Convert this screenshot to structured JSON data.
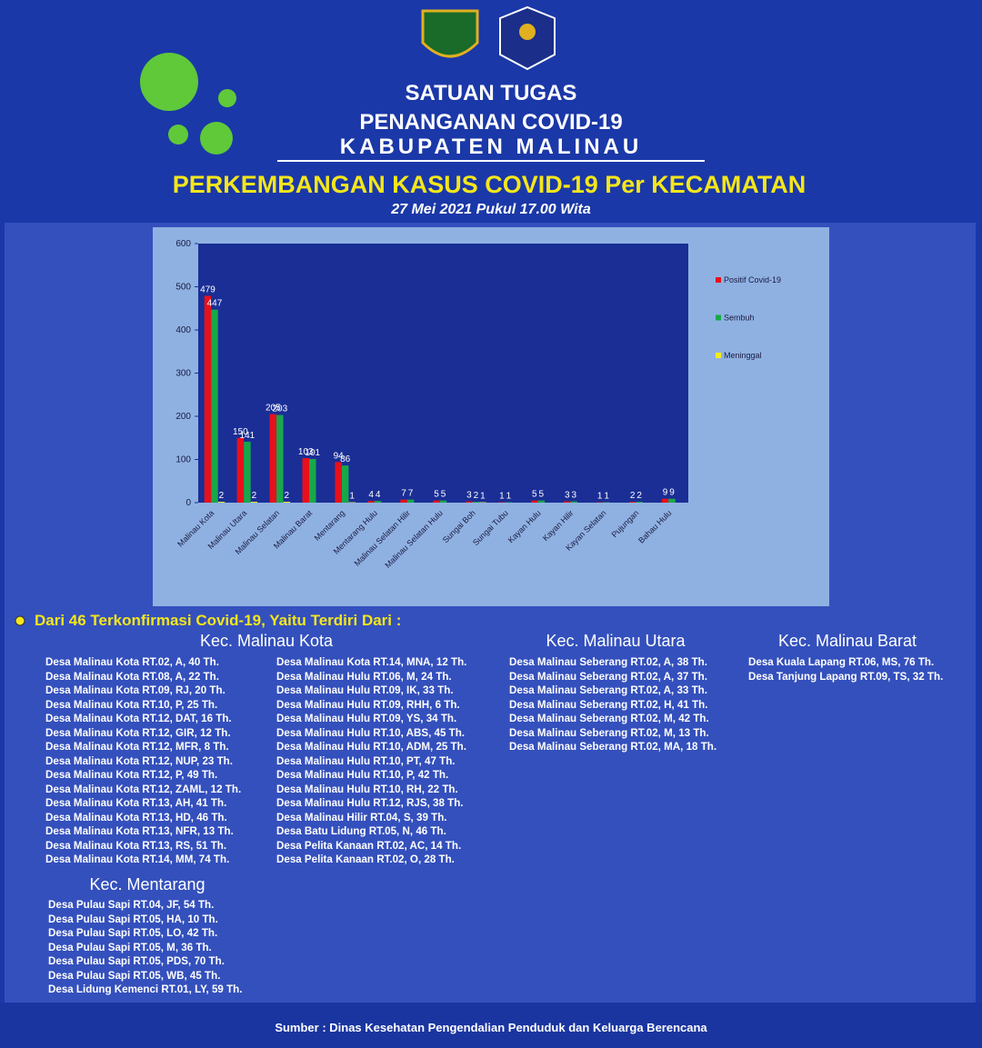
{
  "header": {
    "title_lines": [
      "SATUAN TUGAS",
      "PENANGANAN COVID-19",
      "KABUPATEN MALINAU"
    ],
    "heading": "PERKEMBANGAN KASUS COVID-19 Per KECAMATAN",
    "date": "27 Mei 2021 Pukul 17.00 Wita"
  },
  "chart_data": {
    "type": "bar",
    "categories": [
      "Malinau Kota",
      "Malinau Utara",
      "Malinau Selatan",
      "Malinau Barat",
      "Mentarang",
      "Mentarang Hulu",
      "Malinau Selatan Hilir",
      "Malinau Selatan Hulu",
      "Sungai Boh",
      "Sungai Tubu",
      "Kayan Hulu",
      "Kayan Hilir",
      "Kayan Selatan",
      "Pujungan",
      "Bahau Hulu"
    ],
    "series": [
      {
        "name": "Positif Covid-19",
        "color": "#e8101c",
        "values": [
          479,
          150,
          205,
          103,
          94,
          4,
          7,
          5,
          3,
          1,
          5,
          3,
          1,
          2,
          9
        ]
      },
      {
        "name": "Sembuh",
        "color": "#18a84a",
        "values": [
          447,
          141,
          203,
          101,
          86,
          4,
          7,
          5,
          2,
          1,
          5,
          3,
          1,
          2,
          9
        ]
      },
      {
        "name": "Meninggal",
        "color": "#f2ee1a",
        "values": [
          2,
          2,
          2,
          0,
          1,
          0,
          0,
          0,
          1,
          0,
          0,
          0,
          0,
          0,
          0
        ]
      }
    ],
    "ylim": [
      0,
      600
    ],
    "yticks": [
      0,
      100,
      200,
      300,
      400,
      500,
      600
    ],
    "grid": false,
    "legend": "right"
  },
  "cases": {
    "intro": "Dari 46 Terkonfirmasi Covid-19, Yaitu Terdiri Dari :",
    "groups": [
      {
        "title": "Kec. Malinau Kota",
        "columns": [
          [
            "Desa Malinau Kota RT.02, A, 40 Th.",
            "Desa Malinau Kota RT.08, A, 22 Th.",
            "Desa Malinau Kota RT.09, RJ, 20 Th.",
            "Desa Malinau Kota RT.10, P, 25 Th.",
            "Desa Malinau Kota RT.12, DAT, 16 Th.",
            "Desa Malinau Kota RT.12, GIR, 12 Th.",
            "Desa Malinau Kota RT.12, MFR, 8 Th.",
            "Desa Malinau Kota RT.12, NUP, 23 Th.",
            "Desa Malinau Kota RT.12, P, 49 Th.",
            "Desa Malinau Kota RT.12, ZAML, 12 Th.",
            "Desa Malinau Kota RT.13, AH, 41 Th.",
            "Desa Malinau Kota RT.13, HD, 46 Th.",
            "Desa Malinau Kota RT.13, NFR, 13 Th.",
            "Desa Malinau Kota RT.13, RS, 51 Th.",
            "Desa Malinau Kota RT.14, MM, 74 Th."
          ],
          [
            "Desa Malinau Kota RT.14, MNA, 12 Th.",
            "Desa Malinau Hulu RT.06, M, 24 Th.",
            "Desa Malinau Hulu RT.09, IK, 33 Th.",
            "Desa Malinau Hulu RT.09, RHH, 6 Th.",
            "Desa Malinau Hulu RT.09, YS, 34 Th.",
            "Desa Malinau Hulu RT.10, ABS, 45 Th.",
            "Desa Malinau Hulu RT.10, ADM, 25 Th.",
            "Desa Malinau Hulu RT.10, PT, 47 Th.",
            "Desa Malinau Hulu RT.10, P, 42 Th.",
            "Desa Malinau Hulu RT.10, RH, 22 Th.",
            "Desa Malinau Hulu RT.12, RJS, 38 Th.",
            "Desa Malinau Hilir RT.04, S, 39 Th.",
            "Desa Batu Lidung RT.05, N, 46 Th.",
            "Desa Pelita Kanaan RT.02, AC, 14 Th.",
            "Desa Pelita Kanaan RT.02, O, 28 Th."
          ]
        ]
      },
      {
        "title": "Kec. Malinau Utara",
        "columns": [
          [
            "Desa Malinau Seberang RT.02, A, 38 Th.",
            "Desa Malinau Seberang RT.02, A, 37 Th.",
            "Desa Malinau Seberang RT.02, A, 33 Th.",
            "Desa Malinau Seberang RT.02, H, 41 Th.",
            "Desa Malinau Seberang RT.02, M, 42 Th.",
            "Desa Malinau Seberang RT.02, M, 13 Th.",
            "Desa Malinau Seberang RT.02, MA, 18 Th."
          ]
        ]
      },
      {
        "title": "Kec. Malinau Barat",
        "columns": [
          [
            "Desa Kuala Lapang RT.06, MS, 76 Th.",
            "Desa Tanjung Lapang RT.09, TS, 32 Th."
          ]
        ]
      },
      {
        "title": "Kec. Mentarang",
        "columns": [
          [
            "Desa Pulau Sapi RT.04, JF, 54 Th.",
            "Desa Pulau Sapi RT.05, HA, 10 Th.",
            "Desa Pulau Sapi RT.05, LO, 42 Th.",
            "Desa Pulau Sapi RT.05, M, 36 Th.",
            "Desa Pulau Sapi RT.05, PDS, 70 Th.",
            "Desa Pulau Sapi RT.05, WB, 45 Th.",
            "Desa Lidung Kemenci RT.01, LY, 59 Th."
          ]
        ]
      }
    ]
  },
  "footer": {
    "source": "Sumber : Dinas Kesehatan Pengendalian Penduduk dan Keluarga Berencana"
  }
}
